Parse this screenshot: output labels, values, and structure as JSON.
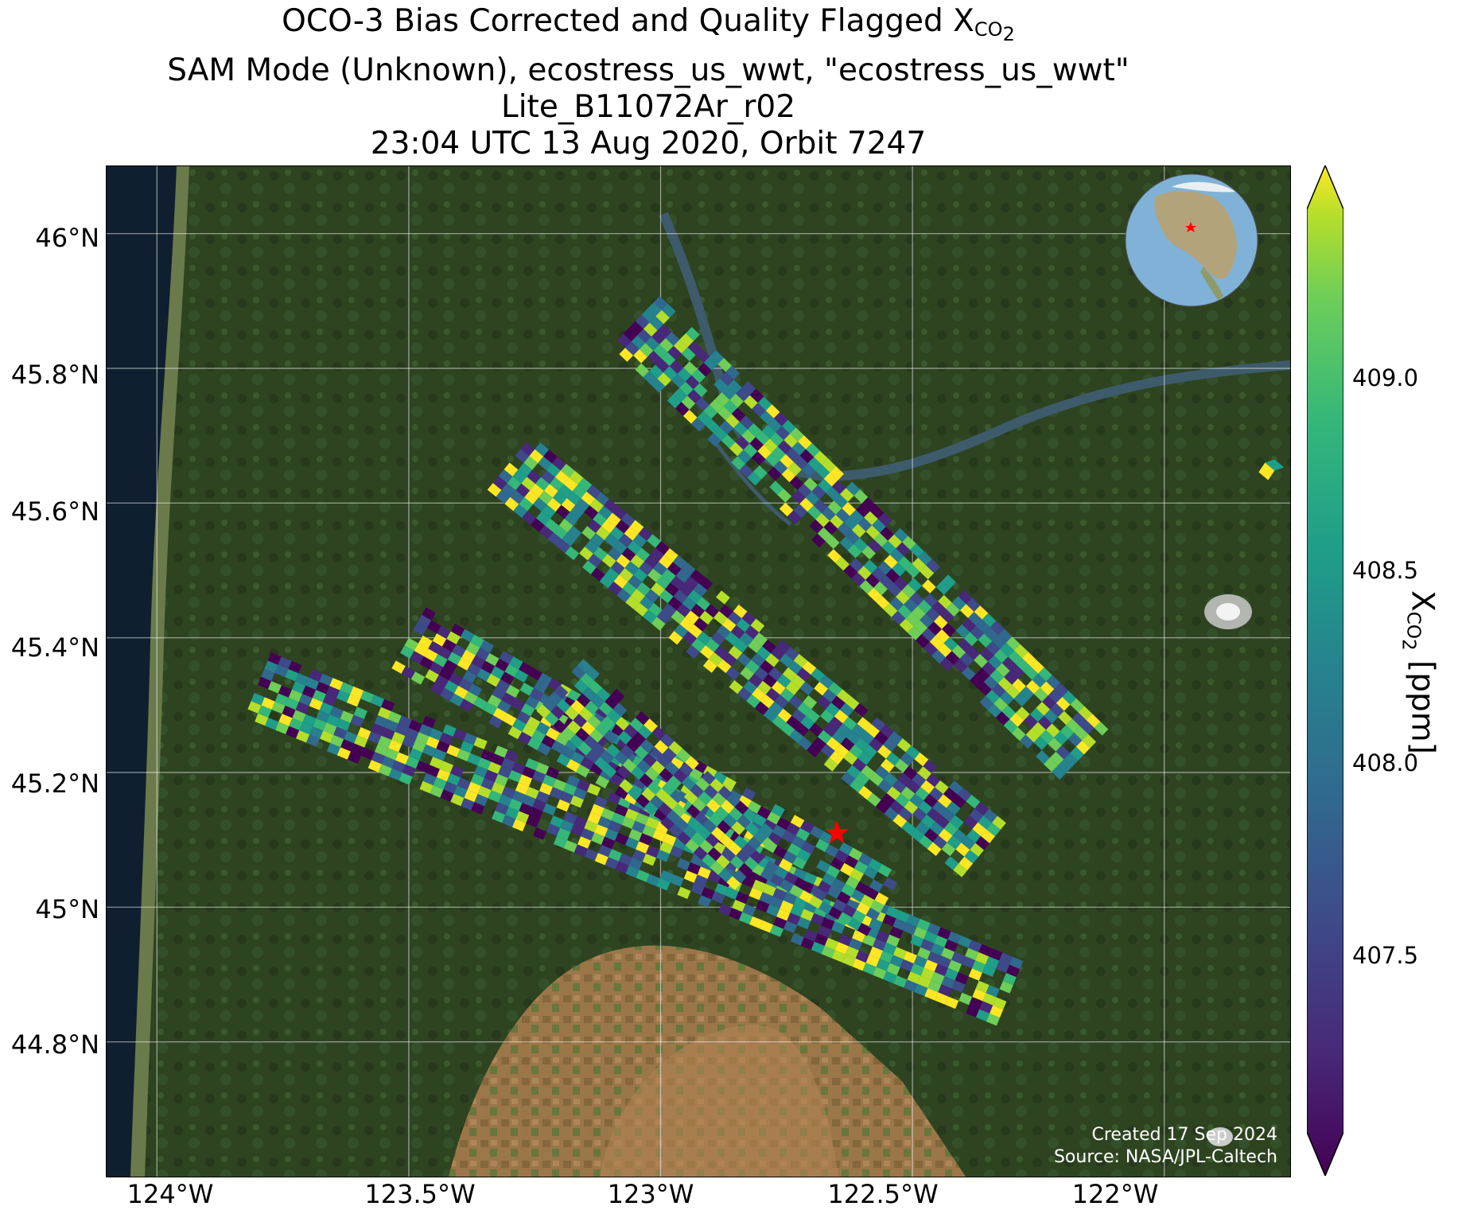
{
  "title": {
    "line1_main": "OCO-3 Bias Corrected and Quality Flagged X",
    "line1_sub": "CO",
    "line1_subsub": "2",
    "line2": "SAM Mode (Unknown), ecostress_us_wwt, \"ecostress_us_wwt\"",
    "line3": "Lite_B11072Ar_r02",
    "line4": "23:04 UTC 13 Aug 2020, Orbit 7247"
  },
  "map": {
    "lat_ticks": [
      "46°N",
      "45.8°N",
      "45.6°N",
      "45.4°N",
      "45.2°N",
      "45°N",
      "44.8°N"
    ],
    "lon_ticks": [
      "124°W",
      "123.5°W",
      "123°W",
      "122.5°W",
      "122°W"
    ],
    "lon_range": [
      -124.1,
      -121.75
    ],
    "lat_range": [
      44.6,
      46.1
    ],
    "target": {
      "lon": -122.65,
      "lat": 45.11,
      "marker": "red-star",
      "color": "#ff0000"
    },
    "basemap": "satellite imagery (forest, farmland, coast, Columbia River)",
    "gridlines": true
  },
  "inset_globe": {
    "marker": "red-star",
    "ocean_color": "#7fb2d6"
  },
  "credit": {
    "created": "Created 17 Sep 2024",
    "source": "Source: NASA/JPL-Caltech"
  },
  "colorbar": {
    "colormap": "viridis",
    "vmin": 407.1,
    "vmax": 409.4,
    "extend": "both",
    "ticks": [
      "409.0",
      "408.5",
      "408.0",
      "407.5"
    ],
    "label_main": "X",
    "label_sub": "CO",
    "label_subsub": "2",
    "label_unit": " [ppm]"
  },
  "chart_data": {
    "type": "heatmap",
    "variable": "XCO2",
    "units": "ppm",
    "value_range": [
      407.1,
      409.4
    ],
    "swaths": [
      {
        "lon_start": -123.05,
        "lat_start": 45.87,
        "lon_end": -122.15,
        "lat_end": 45.22
      },
      {
        "lon_start": -123.3,
        "lat_start": 45.66,
        "lon_end": -122.35,
        "lat_end": 45.08
      },
      {
        "lon_start": -123.8,
        "lat_start": 45.33,
        "lon_end": -122.3,
        "lat_end": 44.87
      },
      {
        "lon_start": -123.5,
        "lat_start": 45.4,
        "lon_end": -122.55,
        "lat_end": 45.0
      },
      {
        "lon_start": -123.2,
        "lat_start": 45.33,
        "lon_end": -122.8,
        "lat_end": 45.06
      }
    ],
    "isolated_points": [
      {
        "lon": -121.8,
        "lat": 45.66
      }
    ]
  }
}
